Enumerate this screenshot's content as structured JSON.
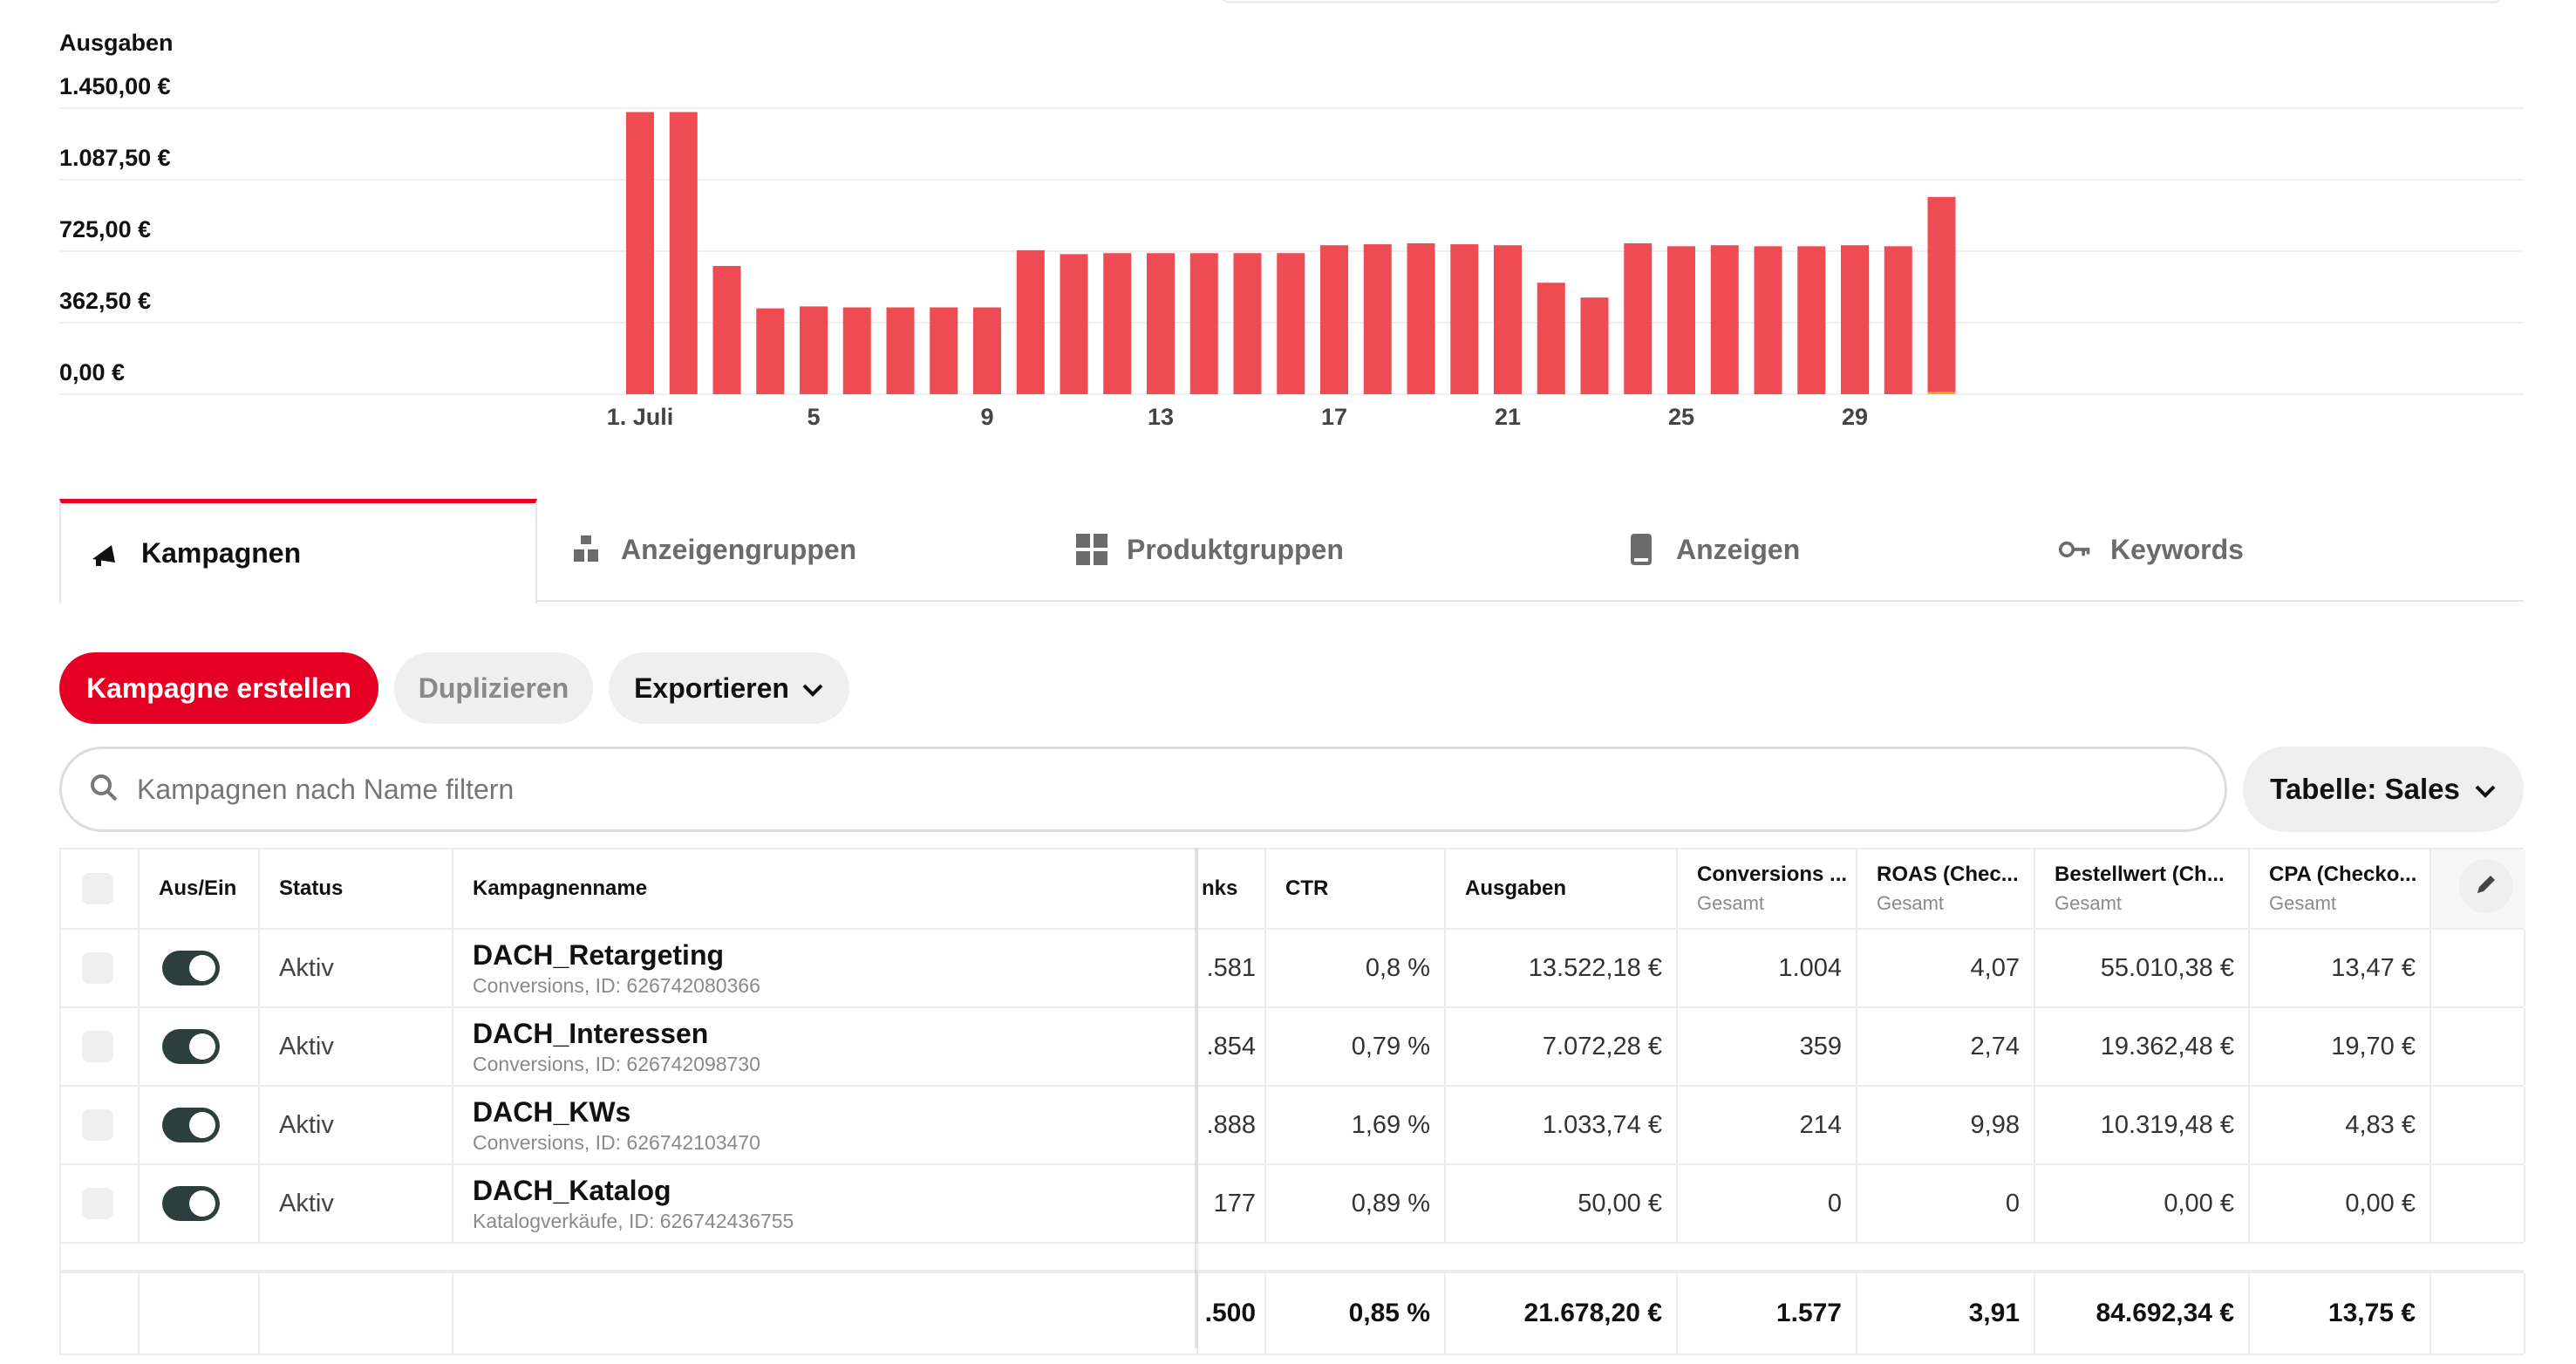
{
  "chart": {
    "y_title": "Ausgaben",
    "y_ticks": [
      "1.450,00 €",
      "1.087,50 €",
      "725,00 €",
      "362,50 €",
      "0,00 €"
    ],
    "x_ticks": [
      "1. Juli",
      "5",
      "9",
      "13",
      "17",
      "21",
      "25",
      "29"
    ]
  },
  "chart_data": {
    "type": "bar",
    "title": "",
    "ylabel": "Ausgaben",
    "ylim": [
      0,
      1450
    ],
    "categories": [
      "1",
      "2",
      "3",
      "4",
      "5",
      "6",
      "7",
      "8",
      "9",
      "10",
      "11",
      "12",
      "13",
      "14",
      "15",
      "16",
      "17",
      "18",
      "19",
      "20",
      "21",
      "22",
      "23",
      "24",
      "25",
      "26",
      "27",
      "28",
      "29",
      "30",
      "31"
    ],
    "series": [
      {
        "color": "#ee4c52",
        "values": [
          1430,
          1430,
          650,
          435,
          445,
          440,
          440,
          440,
          440,
          730,
          710,
          715,
          715,
          715,
          715,
          715,
          755,
          760,
          765,
          760,
          755,
          565,
          490,
          765,
          750,
          755,
          750,
          750,
          755,
          750,
          1000
        ]
      },
      {
        "color": "#f5a623",
        "values": [
          0,
          0,
          0,
          0,
          0,
          0,
          0,
          0,
          0,
          0,
          0,
          0,
          0,
          0,
          0,
          0,
          0,
          0,
          0,
          0,
          0,
          0,
          0,
          0,
          0,
          0,
          0,
          0,
          0,
          0,
          45
        ]
      }
    ]
  },
  "tabs": [
    {
      "label": "Kampagnen",
      "icon": "megaphone-icon",
      "active": true
    },
    {
      "label": "Anzeigengruppen",
      "icon": "ad-groups-icon",
      "active": false
    },
    {
      "label": "Produktgruppen",
      "icon": "grid-icon",
      "active": false
    },
    {
      "label": "Anzeigen",
      "icon": "phone-icon",
      "active": false
    },
    {
      "label": "Keywords",
      "icon": "key-icon",
      "active": false
    }
  ],
  "actions": {
    "create": "Kampagne erstellen",
    "duplicate": "Duplizieren",
    "export": "Exportieren"
  },
  "search": {
    "placeholder": "Kampagnen nach Name filtern"
  },
  "table_select": "Tabelle: Sales",
  "table": {
    "headers": {
      "toggle": "Aus/Ein",
      "status": "Status",
      "name": "Kampagnenname",
      "clicks": "nks",
      "ctr": "CTR",
      "spend": "Ausgaben",
      "conversions": "Conversions ...",
      "conversions_sub": "Gesamt",
      "roas": "ROAS (Chec...",
      "roas_sub": "Gesamt",
      "order_value": "Bestellwert (Ch...",
      "order_value_sub": "Gesamt",
      "cpa": "CPA (Checko...",
      "cpa_sub": "Gesamt"
    },
    "rows": [
      {
        "status": "Aktiv",
        "name": "DACH_Retargeting",
        "sub": "Conversions, ID: 626742080366",
        "clicks": ".581",
        "ctr": "0,8 %",
        "spend": "13.522,18 €",
        "conversions": "1.004",
        "roas": "4,07",
        "order_value": "55.010,38 €",
        "cpa": "13,47 €"
      },
      {
        "status": "Aktiv",
        "name": "DACH_Interessen",
        "sub": "Conversions, ID: 626742098730",
        "clicks": ".854",
        "ctr": "0,79 %",
        "spend": "7.072,28 €",
        "conversions": "359",
        "roas": "2,74",
        "order_value": "19.362,48 €",
        "cpa": "19,70 €"
      },
      {
        "status": "Aktiv",
        "name": "DACH_KWs",
        "sub": "Conversions, ID: 626742103470",
        "clicks": ".888",
        "ctr": "1,69 %",
        "spend": "1.033,74 €",
        "conversions": "214",
        "roas": "9,98",
        "order_value": "10.319,48 €",
        "cpa": "4,83 €"
      },
      {
        "status": "Aktiv",
        "name": "DACH_Katalog",
        "sub": "Katalogverkäufe, ID: 626742436755",
        "clicks": "177",
        "ctr": "0,89 %",
        "spend": "50,00 €",
        "conversions": "0",
        "roas": "0",
        "order_value": "0,00 €",
        "cpa": "0,00 €"
      }
    ],
    "totals": {
      "clicks": ".500",
      "ctr": "0,85 %",
      "spend": "21.678,20 €",
      "conversions": "1.577",
      "roas": "3,91",
      "order_value": "84.692,34 €",
      "cpa": "13,75 €"
    }
  }
}
